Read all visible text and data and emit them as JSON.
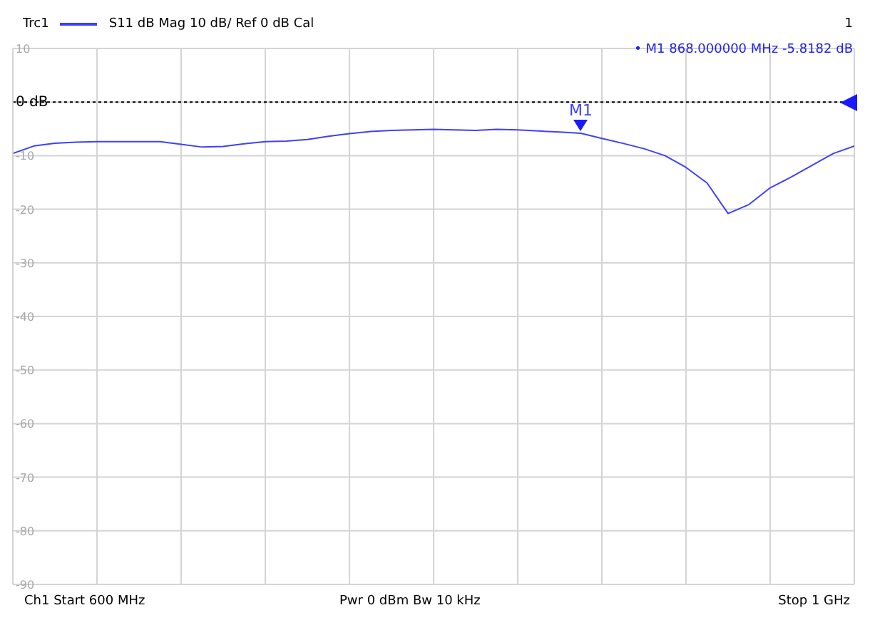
{
  "chart_data": {
    "type": "line",
    "categories": [
      null,
      null,
      null,
      null,
      null,
      null,
      null,
      null,
      null,
      null,
      null,
      null,
      null,
      null,
      null,
      null,
      null,
      null,
      null,
      null,
      null,
      null,
      null,
      null,
      null,
      null,
      null,
      null,
      null,
      null,
      null,
      null,
      null,
      null,
      null,
      null,
      null,
      null,
      null,
      null,
      null
    ],
    "series": [
      {
        "name": "Trc1",
        "color": "#3f3fff",
        "values": [
          -9.6,
          -8.2,
          -7.7,
          -7.5,
          -7.4,
          -7.4,
          -7.4,
          -7.4,
          -7.9,
          -8.4,
          -8.3,
          -7.8,
          -7.4,
          -7.3,
          -7.0,
          -6.4,
          -5.9,
          -5.5,
          -5.3,
          -5.2,
          -5.1,
          -5.2,
          -5.3,
          -5.1,
          -5.2,
          -5.4,
          -5.6,
          -5.8182,
          -6.8,
          -7.7,
          -8.7,
          -10.0,
          -12.2,
          -15.1,
          -20.8,
          -19.1,
          -16,
          -14,
          -11.8,
          -9.6,
          -8.2
        ]
      }
    ],
    "ylim": [
      -90,
      10
    ],
    "yticks": [
      -90,
      -80,
      -70,
      -60,
      -50,
      -40,
      -30,
      -20,
      -10,
      {
        "value": 0,
        "label": "0 dB"
      },
      10
    ],
    "grid": true,
    "legend": "top left",
    "marker": "none",
    "line_style": "solid",
    "ref_lines": [
      {
        "axis": "y",
        "value": 0,
        "color": "#000000",
        "line_style": "dotted"
      }
    ],
    "annotations": [
      "S11  dB Mag  10 dB/ Ref 0 dB  Cal",
      "1",
      {
        "text": "M1",
        "y": -5.8182
      },
      "• M1  868.000000  MHz  -5.8182  dB",
      "Ch1  Start 600 MHz",
      "Pwr  0 dBm  Bw  10 kHz",
      "Stop  1 GHz"
    ]
  }
}
